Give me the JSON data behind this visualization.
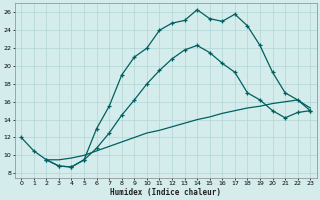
{
  "xlabel": "Humidex (Indice chaleur)",
  "bg_color": "#d5ecec",
  "grid_color": "#b8d8d8",
  "line_color": "#006060",
  "xlim": [
    -0.5,
    23.5
  ],
  "ylim": [
    7.5,
    27
  ],
  "xticks": [
    0,
    1,
    2,
    3,
    4,
    5,
    6,
    7,
    8,
    9,
    10,
    11,
    12,
    13,
    14,
    15,
    16,
    17,
    18,
    19,
    20,
    21,
    22,
    23
  ],
  "yticks": [
    8,
    10,
    12,
    14,
    16,
    18,
    20,
    22,
    24,
    26
  ],
  "line1_x": [
    0,
    1,
    2,
    3,
    4,
    5,
    6,
    7,
    8,
    9,
    10,
    11,
    12,
    13,
    14,
    15,
    16,
    17,
    18,
    19,
    20,
    21,
    22,
    23
  ],
  "line1_y": [
    12.0,
    10.5,
    9.5,
    8.8,
    8.7,
    9.5,
    13.0,
    15.5,
    19.0,
    21.0,
    22.0,
    24.0,
    24.8,
    25.1,
    26.3,
    25.3,
    25.0,
    25.8,
    24.5,
    22.3,
    19.3,
    17.0,
    16.2,
    15.0
  ],
  "line2_x": [
    2,
    3,
    4,
    5,
    6,
    7,
    8,
    9,
    10,
    11,
    12,
    13,
    14,
    15,
    16,
    17,
    18,
    19,
    20,
    21,
    22,
    23
  ],
  "line2_y": [
    9.5,
    8.8,
    8.7,
    9.5,
    10.8,
    12.5,
    14.5,
    16.2,
    18.0,
    19.5,
    20.8,
    21.8,
    22.3,
    21.5,
    20.3,
    19.3,
    17.0,
    16.2,
    15.0,
    14.2,
    14.8,
    15.0
  ],
  "line3_x": [
    2,
    3,
    4,
    5,
    6,
    7,
    8,
    9,
    10,
    11,
    12,
    13,
    14,
    15,
    16,
    17,
    18,
    19,
    20,
    21,
    22,
    23
  ],
  "line3_y": [
    9.5,
    9.5,
    9.7,
    10.0,
    10.5,
    11.0,
    11.5,
    12.0,
    12.5,
    12.8,
    13.2,
    13.6,
    14.0,
    14.3,
    14.7,
    15.0,
    15.3,
    15.5,
    15.8,
    16.0,
    16.2,
    15.3
  ]
}
